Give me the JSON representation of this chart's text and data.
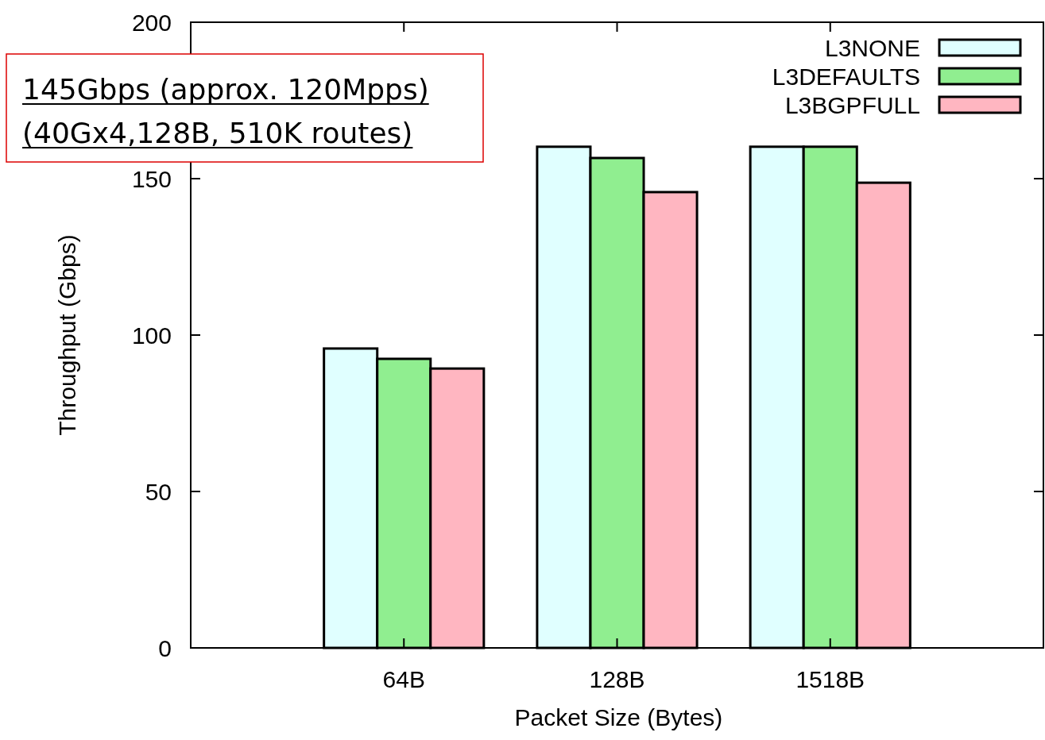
{
  "chart_data": {
    "type": "bar",
    "xlabel": "Packet Size (Bytes)",
    "ylabel": "Throughput (Gbps)",
    "categories": [
      "64B",
      "128B",
      "1518B"
    ],
    "series": [
      {
        "name": "L3NONE",
        "color": "#e0ffff",
        "values": [
          95.7,
          160.2,
          160.2
        ]
      },
      {
        "name": "L3DEFAULTS",
        "color": "#90ee90",
        "values": [
          92.4,
          156.6,
          160.2
        ]
      },
      {
        "name": "L3BGPFULL",
        "color": "#ffb6c1",
        "values": [
          89.3,
          145.7,
          148.7
        ]
      }
    ],
    "ylim": [
      0,
      200
    ],
    "yticks": [
      0,
      50,
      100,
      150,
      200
    ],
    "grid": false,
    "legend": "top right",
    "annotations": [
      "145Gbps (approx. 120Mpps)",
      "(40Gx4,128B, 510K routes)"
    ]
  }
}
